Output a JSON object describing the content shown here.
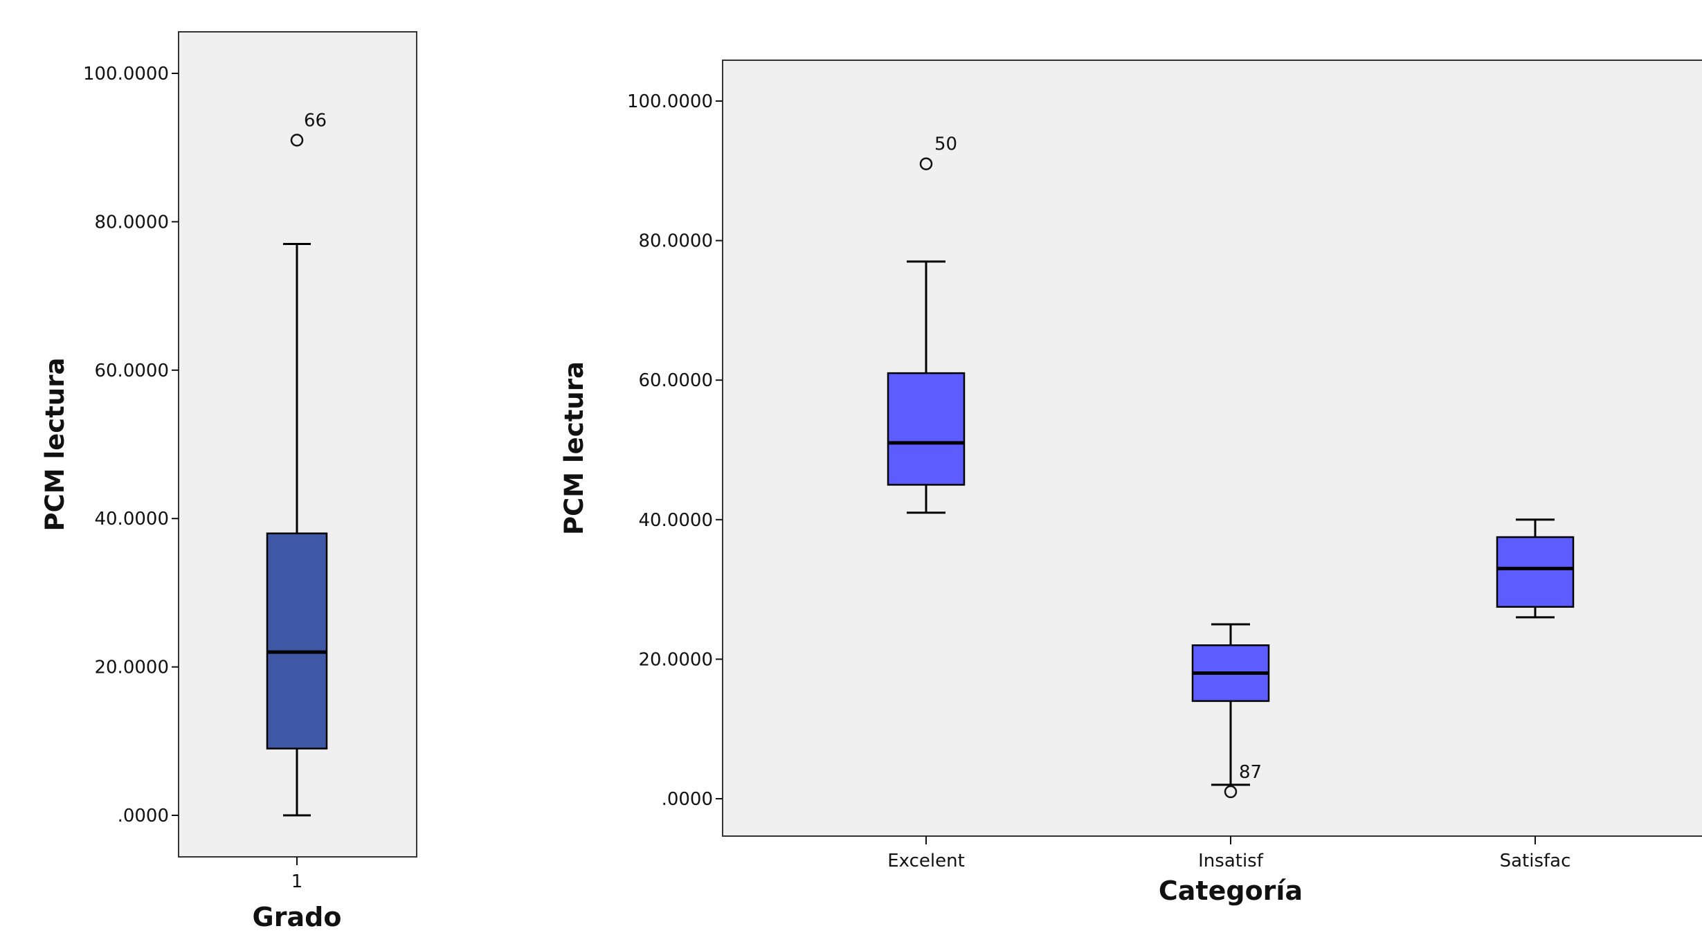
{
  "chart_data": [
    {
      "type": "boxplot",
      "xlabel": "Grado",
      "ylabel": "PCM lectura",
      "ylim": [
        0,
        100
      ],
      "yticks": [
        0,
        20,
        40,
        60,
        80,
        100
      ],
      "ytick_labels": [
        ".0000",
        "20.0000",
        "40.0000",
        "60.0000",
        "80.0000",
        "100.0000"
      ],
      "categories": [
        "1"
      ],
      "grid": false,
      "box_color": "#3f58a6",
      "plot_background": "#f0f0f0",
      "boxes": [
        {
          "category": "1",
          "whisker_low": 0,
          "q1": 9,
          "median": 22,
          "q3": 38,
          "whisker_high": 77,
          "outliers": [
            {
              "value": 91,
              "label": "66"
            }
          ]
        }
      ]
    },
    {
      "type": "boxplot",
      "xlabel": "Categoría",
      "ylabel": "PCM lectura",
      "ylim": [
        0,
        100
      ],
      "yticks": [
        0,
        20,
        40,
        60,
        80,
        100
      ],
      "ytick_labels": [
        ".0000",
        "20.0000",
        "40.0000",
        "60.0000",
        "80.0000",
        "100.0000"
      ],
      "categories": [
        "Excelent",
        "Insatisf",
        "Satisfac"
      ],
      "grid": false,
      "box_color": "#5c5cff",
      "plot_background": "#f0f0f0",
      "boxes": [
        {
          "category": "Excelent",
          "whisker_low": 41,
          "q1": 45,
          "median": 51,
          "q3": 61,
          "whisker_high": 77,
          "outliers": [
            {
              "value": 91,
              "label": "50"
            }
          ]
        },
        {
          "category": "Insatisf",
          "whisker_low": 2,
          "q1": 14,
          "median": 18,
          "q3": 22,
          "whisker_high": 25,
          "outliers": [
            {
              "value": 1,
              "label": "87"
            }
          ]
        },
        {
          "category": "Satisfac",
          "whisker_low": 26,
          "q1": 27.5,
          "median": 33,
          "q3": 37.5,
          "whisker_high": 40,
          "outliers": []
        }
      ]
    }
  ]
}
